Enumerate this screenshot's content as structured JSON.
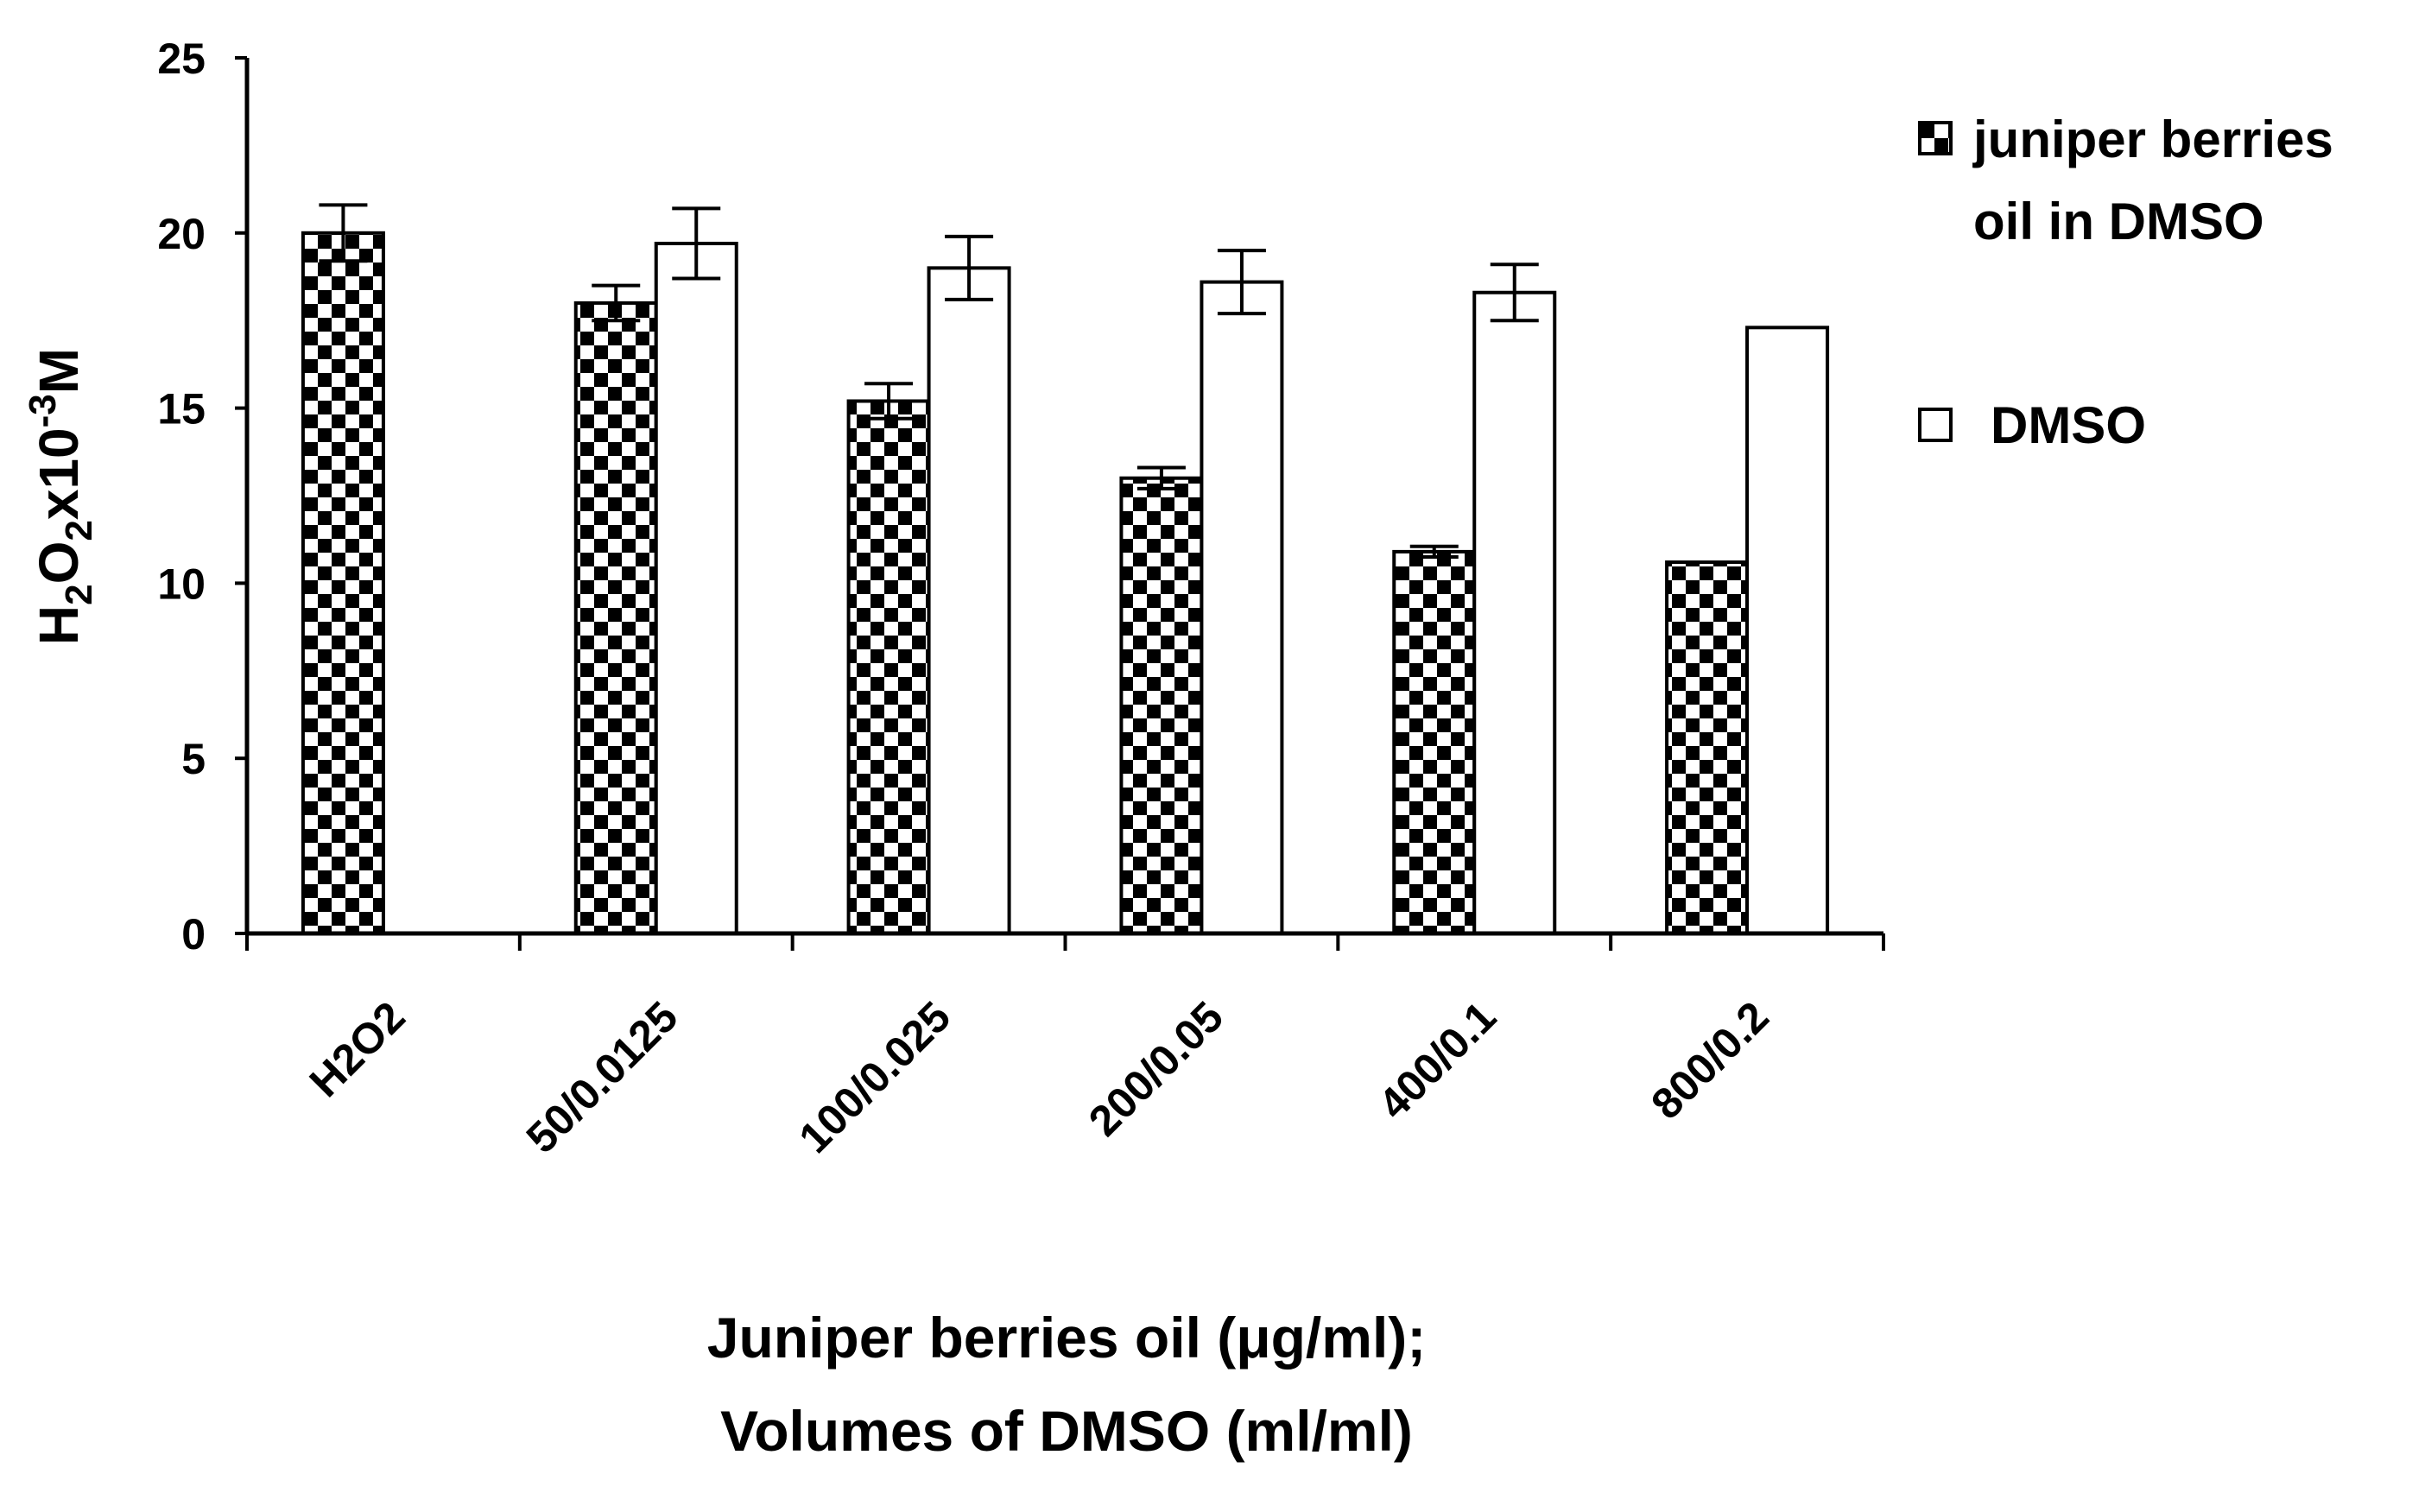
{
  "chart_data": {
    "type": "bar",
    "categories": [
      "H2O2",
      "50/0.0125",
      "100/0.025",
      "200/0.05",
      "400/0.1",
      "800/0.2"
    ],
    "series": [
      {
        "name_lines": [
          "juniper berries",
          "oil in DMSO"
        ],
        "pattern": "checkerboard",
        "values": [
          20.0,
          18.0,
          15.2,
          13.0,
          10.9,
          10.6
        ],
        "errors": [
          0.8,
          0.5,
          0.5,
          0.3,
          0.15,
          0.0
        ]
      },
      {
        "name_lines": [
          "DMSO"
        ],
        "pattern": "white",
        "values": [
          null,
          19.7,
          19.0,
          18.6,
          18.3,
          17.3
        ],
        "errors": [
          null,
          1.0,
          0.9,
          0.9,
          0.8,
          0.0
        ]
      }
    ],
    "ylim": [
      0,
      25
    ],
    "yticks": [
      0,
      5,
      10,
      15,
      20,
      25
    ],
    "ylabel": {
      "base1": "H",
      "sub1": "2",
      "base2": "O",
      "sub2": "2",
      "base3": "x10",
      "sup": "-3",
      "base4": "M"
    },
    "xlabel_lines": [
      "Juniper berries oil (μg/ml);",
      "Volumes of DMSO (ml/ml)"
    ],
    "grid": false,
    "legend_position": "right"
  }
}
